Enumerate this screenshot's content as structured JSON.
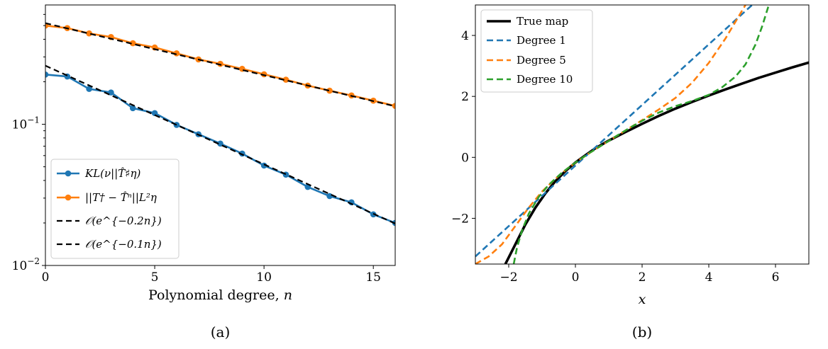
{
  "chart_data": [
    {
      "panel_label": "(a)",
      "type": "line",
      "yscale": "log",
      "xlim": [
        0,
        16
      ],
      "ylim": [
        0.01,
        0.7
      ],
      "xlabel_text": "Polynomial degree, ",
      "xlabel_var": "n",
      "x_ticks": [
        0,
        5,
        10,
        15
      ],
      "x_tick_labels": [
        "0",
        "5",
        "10",
        "15"
      ],
      "y_ticks": [
        0.1,
        0.01
      ],
      "y_tick_base": "10",
      "y_tick_exps": [
        "−1",
        "−2"
      ],
      "legend_position": "lower-left",
      "series": [
        {
          "name": "KL(ν||T̂♯η)",
          "color": "#1f77b4",
          "style": "solid-marker",
          "x": [
            0,
            1,
            2,
            3,
            4,
            5,
            6,
            7,
            8,
            9,
            10,
            11,
            12,
            13,
            14,
            15,
            16
          ],
          "y": [
            0.225,
            0.218,
            0.178,
            0.168,
            0.13,
            0.12,
            0.099,
            0.085,
            0.073,
            0.062,
            0.051,
            0.044,
            0.036,
            0.031,
            0.028,
            0.023,
            0.02
          ]
        },
        {
          "name": "||T† − T̂ⁿ||L²η",
          "color": "#ff7f0e",
          "style": "solid-marker",
          "x": [
            0,
            1,
            2,
            3,
            4,
            5,
            6,
            7,
            8,
            9,
            10,
            11,
            12,
            13,
            14,
            15,
            16
          ],
          "y": [
            0.5,
            0.48,
            0.44,
            0.415,
            0.375,
            0.35,
            0.318,
            0.288,
            0.268,
            0.247,
            0.226,
            0.207,
            0.188,
            0.173,
            0.16,
            0.147,
            0.135
          ]
        },
        {
          "name": "𝒪(e^{−0.2n})",
          "color": "#000000",
          "style": "dashed",
          "x": [
            0,
            16
          ],
          "y": [
            0.26,
            0.0198
          ]
        },
        {
          "name": "𝒪(e^{−0.1n})",
          "color": "#000000",
          "style": "dashed",
          "x": [
            0,
            16
          ],
          "y": [
            0.52,
            0.134
          ]
        }
      ]
    },
    {
      "panel_label": "(b)",
      "type": "line",
      "xlim": [
        -3,
        7
      ],
      "ylim": [
        -3.5,
        5
      ],
      "xlabel_var": "x",
      "x_ticks": [
        -2,
        0,
        2,
        4,
        6
      ],
      "x_tick_labels": [
        "−2",
        "0",
        "2",
        "4",
        "6"
      ],
      "y_ticks": [
        -2,
        0,
        2,
        4
      ],
      "y_tick_labels": [
        "−2",
        "0",
        "2",
        "4"
      ],
      "legend_position": "upper-left",
      "series": [
        {
          "name": "True map",
          "color": "#000000",
          "style": "solid-thick",
          "x": [
            -2.1,
            -1.8,
            -1.5,
            -1.2,
            -0.9,
            -0.6,
            -0.3,
            0,
            0.3,
            0.6,
            1.0,
            1.5,
            2.0,
            2.5,
            3,
            3.5,
            4,
            4.5,
            5,
            5.5,
            6,
            6.5,
            7
          ],
          "y": [
            -3.5,
            -2.85,
            -2.2,
            -1.65,
            -1.18,
            -0.78,
            -0.45,
            -0.17,
            0.07,
            0.3,
            0.55,
            0.83,
            1.1,
            1.36,
            1.6,
            1.82,
            2.03,
            2.23,
            2.42,
            2.61,
            2.78,
            2.95,
            3.11
          ]
        },
        {
          "name": "Degree 1",
          "color": "#1f77b4",
          "style": "dashed",
          "x": [
            -3,
            5.3
          ],
          "y": [
            -3.25,
            5.0
          ]
        },
        {
          "name": "Degree 5",
          "color": "#ff7f0e",
          "style": "dashed",
          "x": [
            -3,
            -2.6,
            -2.2,
            -1.8,
            -1.4,
            -1.0,
            -0.6,
            -0.2,
            0.2,
            0.6,
            1.0,
            1.5,
            2.0,
            2.5,
            3.0,
            3.5,
            4.0,
            4.5,
            4.8,
            5.1
          ],
          "y": [
            -3.5,
            -3.25,
            -2.85,
            -2.25,
            -1.65,
            -1.12,
            -0.7,
            -0.33,
            -0.02,
            0.27,
            0.54,
            0.88,
            1.22,
            1.57,
            1.95,
            2.45,
            3.1,
            3.9,
            4.45,
            5.0
          ]
        },
        {
          "name": "Degree 10",
          "color": "#2ca02c",
          "style": "dashed",
          "x": [
            -1.85,
            -1.75,
            -1.6,
            -1.4,
            -1.1,
            -0.8,
            -0.4,
            0,
            0.4,
            0.8,
            1.2,
            1.6,
            2.0,
            2.5,
            3.0,
            3.5,
            4.0,
            4.4,
            4.8,
            5.1,
            5.4,
            5.6,
            5.8
          ],
          "y": [
            -3.5,
            -2.95,
            -2.4,
            -1.85,
            -1.3,
            -0.9,
            -0.5,
            -0.17,
            0.13,
            0.4,
            0.68,
            0.95,
            1.2,
            1.47,
            1.68,
            1.85,
            2.05,
            2.3,
            2.65,
            3.05,
            3.7,
            4.3,
            5.0
          ]
        }
      ]
    }
  ]
}
